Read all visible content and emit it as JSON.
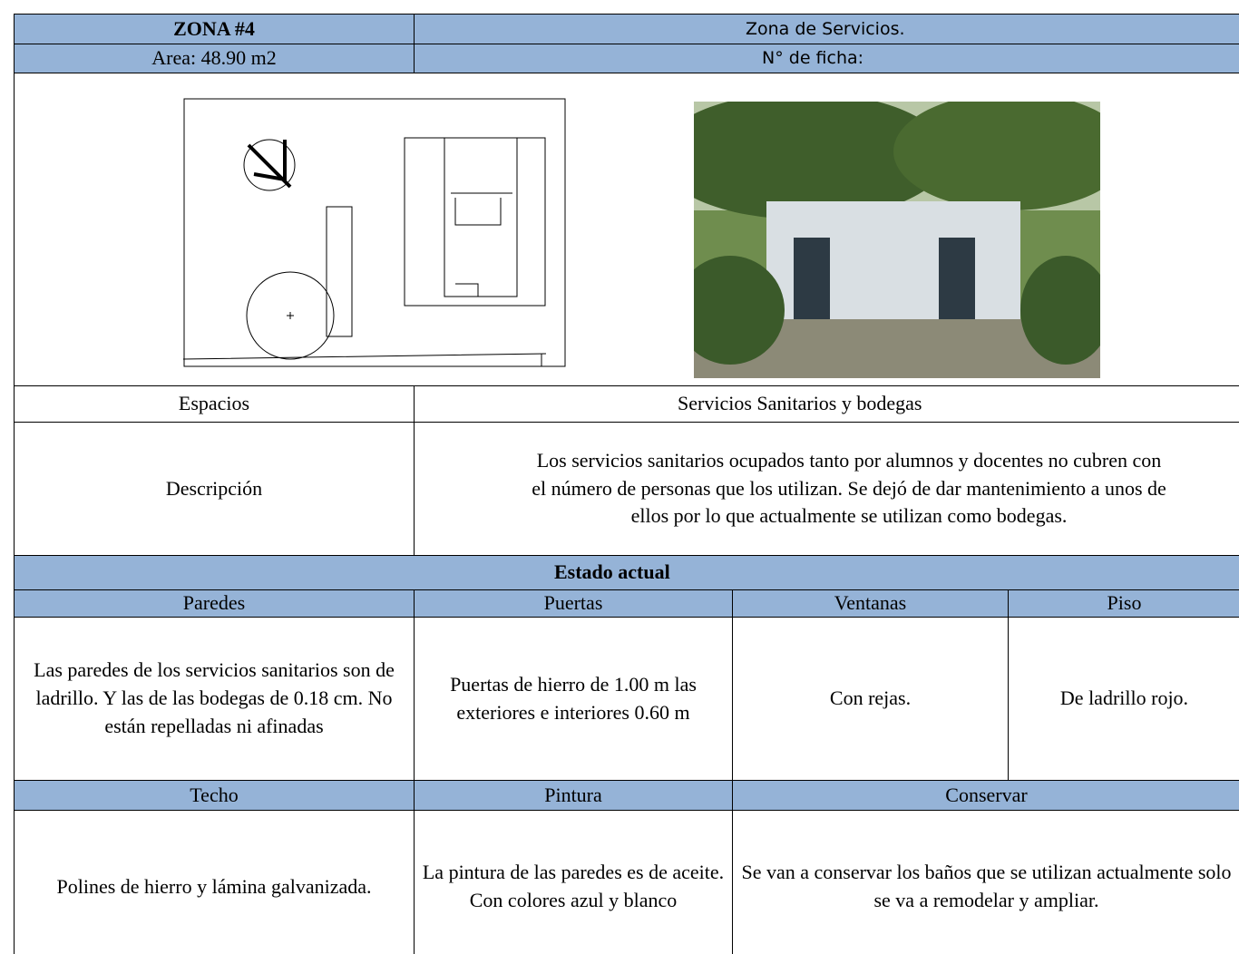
{
  "header": {
    "zona": "ZONA #4",
    "zona_nombre": "Zona de Servicios.",
    "area": "Area: 48.90 m2",
    "ficha": "N° de ficha:"
  },
  "espacios": {
    "label": "Espacios",
    "value": "Servicios Sanitarios y bodegas"
  },
  "descripcion": {
    "label": "Descripción",
    "lines": [
      "Los servicios sanitarios ocupados tanto por alumnos y docentes no cubren con",
      "el número de personas que los utilizan. Se dejó de dar mantenimiento a unos de",
      "ellos por lo que actualmente se utilizan como bodegas."
    ]
  },
  "estado": {
    "title": "Estado  actual",
    "row1": {
      "headers": [
        "Paredes",
        "Puertas",
        "Ventanas",
        "Piso"
      ],
      "values": [
        "Las paredes de los servicios sanitarios son de ladrillo. Y las de las bodegas de 0.18 cm. No están repelladas ni afinadas",
        "Puertas de hierro de 1.00 m las exteriores e interiores 0.60 m",
        "Con rejas.",
        "De ladrillo rojo."
      ]
    },
    "row2": {
      "headers": [
        "Techo",
        "Pintura",
        "Conservar"
      ],
      "values": [
        "Polines de hierro y lámina galvanizada.",
        "La pintura de las paredes es de aceite. Con colores azul y blanco",
        "Se van a conservar los baños que se utilizan actualmente solo se va a remodelar y ampliar."
      ]
    }
  }
}
